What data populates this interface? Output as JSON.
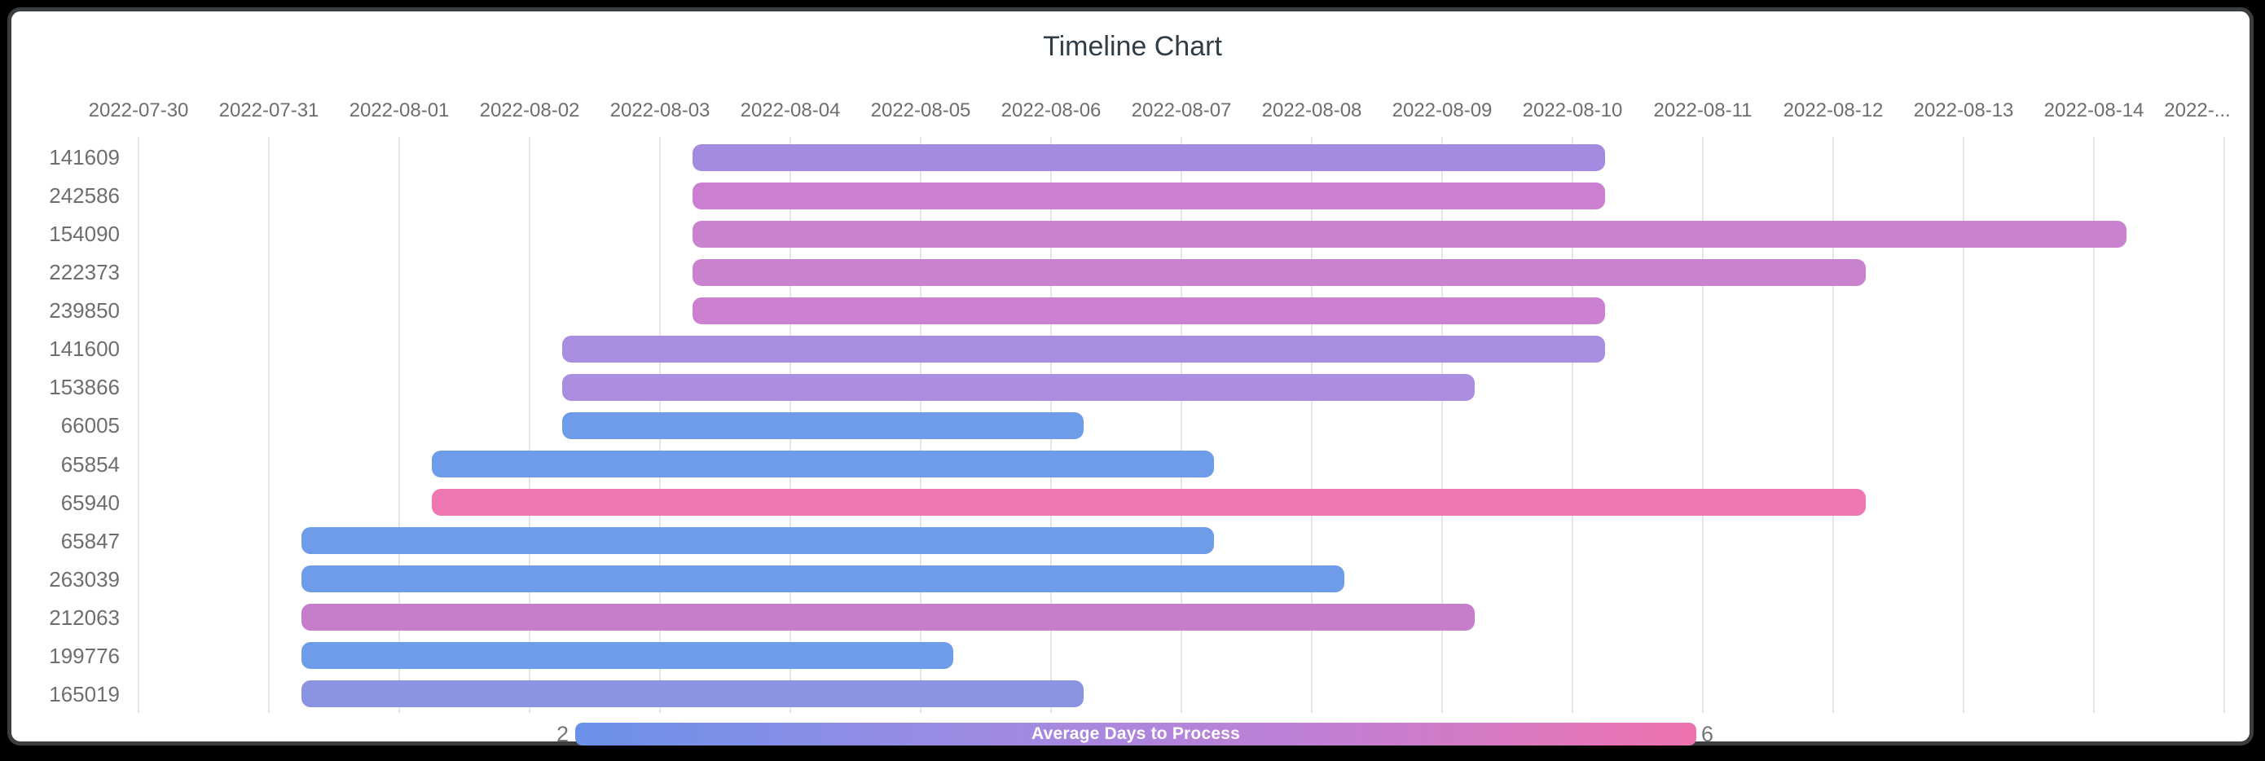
{
  "window": {
    "frame_color": "#000000",
    "panel_edge_color": "#3a3e41",
    "panel_background": "#ffffff"
  },
  "title": {
    "text": "Timeline Chart",
    "color": "#303d46"
  },
  "axis": {
    "position": "top",
    "tick_labels": [
      "2022-07-30",
      "2022-07-31",
      "2022-08-01",
      "2022-08-02",
      "2022-08-03",
      "2022-08-04",
      "2022-08-05",
      "2022-08-06",
      "2022-08-07",
      "2022-08-08",
      "2022-08-09",
      "2022-08-10",
      "2022-08-11",
      "2022-08-12",
      "2022-08-13",
      "2022-08-14",
      "2022-..."
    ],
    "tick_color": "#6e6e6e",
    "gridline_color": "#e7e7e9"
  },
  "y_axis": {
    "label_color": "#6e6e6e"
  },
  "chart_data": {
    "type": "timeline",
    "title": "Timeline Chart",
    "x_range": [
      "2022-07-30",
      "2022-08-15"
    ],
    "x_tick_interval_days": 1,
    "grid": true,
    "tasks": [
      {
        "id": "141609",
        "start": "2022-08-03T06:00:00",
        "end": "2022-08-10T06:00:00",
        "duration_days": 7,
        "avg_days_to_process": 4,
        "color": "#a58ae2"
      },
      {
        "id": "242586",
        "start": "2022-08-03T06:00:00",
        "end": "2022-08-10T06:00:00",
        "duration_days": 7,
        "avg_days_to_process": 5,
        "color": "#cb7fd1"
      },
      {
        "id": "154090",
        "start": "2022-08-03T06:00:00",
        "end": "2022-08-14T06:00:00",
        "duration_days": 11,
        "avg_days_to_process": 5,
        "color": "#c982cd"
      },
      {
        "id": "222373",
        "start": "2022-08-03T06:00:00",
        "end": "2022-08-12T06:00:00",
        "duration_days": 9,
        "avg_days_to_process": 5,
        "color": "#c982cd"
      },
      {
        "id": "239850",
        "start": "2022-08-03T06:00:00",
        "end": "2022-08-10T06:00:00",
        "duration_days": 7,
        "avg_days_to_process": 5,
        "color": "#cb81cf"
      },
      {
        "id": "141600",
        "start": "2022-08-02T06:00:00",
        "end": "2022-08-10T06:00:00",
        "duration_days": 8,
        "avg_days_to_process": 4,
        "color": "#a98de1"
      },
      {
        "id": "153866",
        "start": "2022-08-02T06:00:00",
        "end": "2022-08-09T06:00:00",
        "duration_days": 7,
        "avg_days_to_process": 4,
        "color": "#ab8ee0"
      },
      {
        "id": "66005",
        "start": "2022-08-02T06:00:00",
        "end": "2022-08-06T06:00:00",
        "duration_days": 4,
        "avg_days_to_process": 2,
        "color": "#6f9ce9"
      },
      {
        "id": "65854",
        "start": "2022-08-01T06:00:00",
        "end": "2022-08-07T06:00:00",
        "duration_days": 6,
        "avg_days_to_process": 2,
        "color": "#6f9ce9"
      },
      {
        "id": "65940",
        "start": "2022-08-01T06:00:00",
        "end": "2022-08-12T06:00:00",
        "duration_days": 11,
        "avg_days_to_process": 6,
        "color": "#ef77b1"
      },
      {
        "id": "65847",
        "start": "2022-07-31T06:00:00",
        "end": "2022-08-07T06:00:00",
        "duration_days": 7,
        "avg_days_to_process": 2,
        "color": "#6f9ce9"
      },
      {
        "id": "263039",
        "start": "2022-07-31T06:00:00",
        "end": "2022-08-08T06:00:00",
        "duration_days": 8,
        "avg_days_to_process": 2,
        "color": "#6f9ce9"
      },
      {
        "id": "212063",
        "start": "2022-07-31T06:00:00",
        "end": "2022-08-09T06:00:00",
        "duration_days": 9,
        "avg_days_to_process": 5,
        "color": "#c67ecb"
      },
      {
        "id": "199776",
        "start": "2022-07-31T06:00:00",
        "end": "2022-08-05T06:00:00",
        "duration_days": 5,
        "avg_days_to_process": 2,
        "color": "#6f9ce9"
      },
      {
        "id": "165019",
        "start": "2022-07-31T06:00:00",
        "end": "2022-08-06T06:00:00",
        "duration_days": 6,
        "avg_days_to_process": 3,
        "color": "#8b93e3"
      }
    ],
    "colorbar": {
      "label": "Average Days to Process",
      "min": 2,
      "max": 6,
      "orientation": "horizontal",
      "position": "bottom",
      "gradient_stops": [
        "#6a91e8",
        "#9a8ce4",
        "#c17fd4",
        "#ee72ad"
      ],
      "label_color": "#ffffff",
      "tick_color": "#757575"
    }
  }
}
